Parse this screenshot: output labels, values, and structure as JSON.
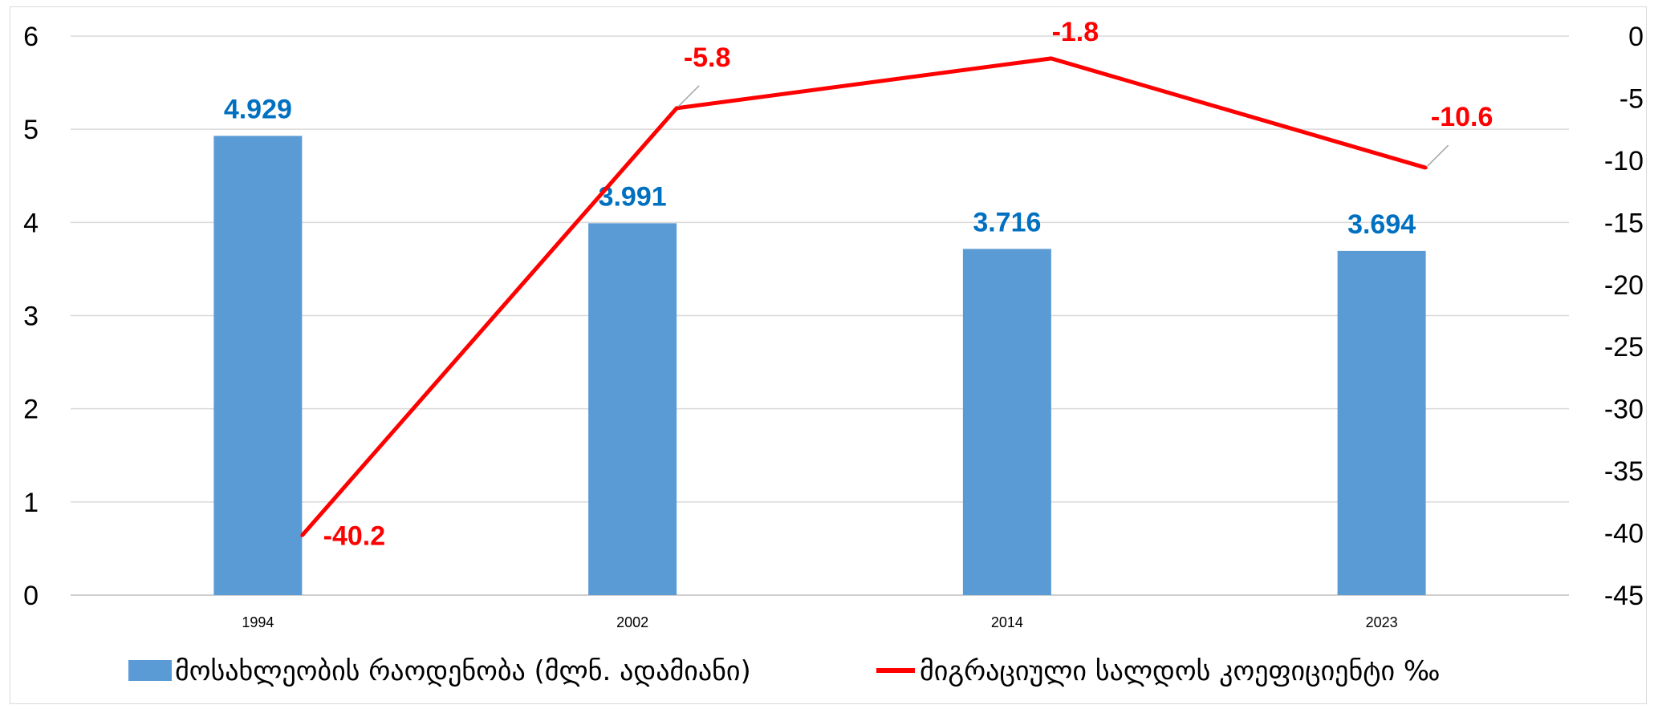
{
  "chart_data": {
    "type": "bar",
    "categories": [
      "1994",
      "2002",
      "2014",
      "2023"
    ],
    "series": [
      {
        "name": "მოსახლეობის რაოდენობა (მლნ. ადამიანი)",
        "type": "bar",
        "axis": "left",
        "values": [
          4.929,
          3.991,
          3.716,
          3.694
        ],
        "color": "#5b9bd5",
        "label_color": "#0070c0"
      },
      {
        "name": "მიგრაციული სალდოს კოეფიციენტი ‰",
        "type": "line",
        "axis": "right",
        "values": [
          -40.2,
          -5.8,
          -1.8,
          -10.6
        ],
        "color": "#ff0000"
      }
    ],
    "y_left": {
      "ylim": [
        0,
        6
      ],
      "ticks": [
        "0",
        "1",
        "2",
        "3",
        "4",
        "5",
        "6"
      ]
    },
    "y_right": {
      "ylim": [
        -45,
        0
      ],
      "ticks": [
        "0",
        "-5",
        "-10",
        "-15",
        "-20",
        "-25",
        "-30",
        "-35",
        "-40",
        "-45"
      ]
    },
    "bar_labels": [
      "4.929",
      "3.991",
      "3.716",
      "3.694"
    ],
    "line_labels": [
      "-40.2",
      "-5.8",
      "-1.8",
      "-10.6"
    ],
    "grid": true,
    "legend_position": "bottom"
  }
}
